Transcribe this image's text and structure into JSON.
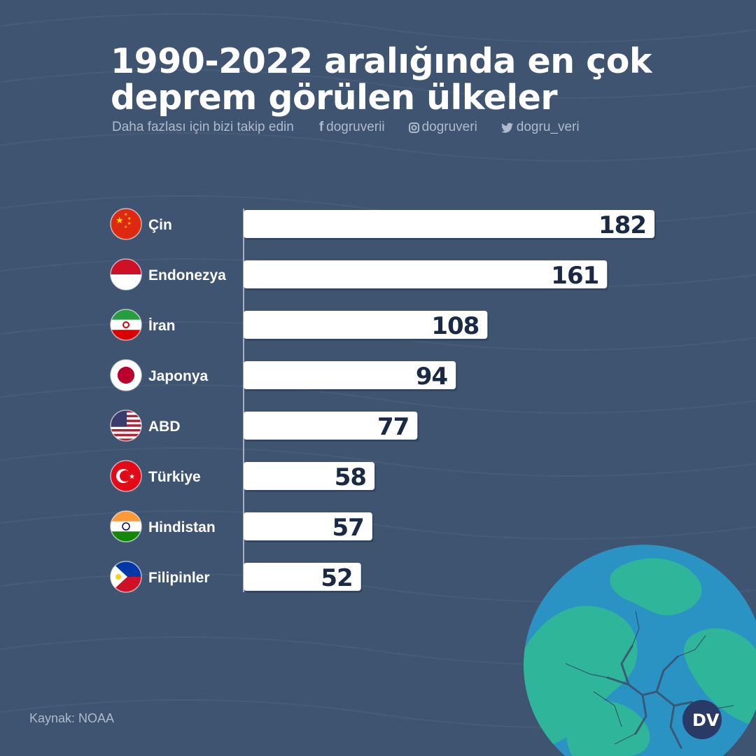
{
  "title_line1": "1990-2022 aralığında en çok",
  "title_line2": "deprem görülen ülkeler",
  "social": {
    "follow_text": "Daha fazlası için bizi takip edin",
    "facebook": "dogruverii",
    "instagram": "dogruveri",
    "twitter": "dogru_veri"
  },
  "source": "Kaynak: NOAA",
  "logo_text": "DV",
  "colors": {
    "background": "#3f5470",
    "bar": "#ffffff",
    "value_text": "#1b2a44",
    "label_text": "#ffffff",
    "globe_ocean": "#2a93c4",
    "globe_land": "#2fb59a"
  },
  "chart_data": {
    "type": "bar",
    "orientation": "horizontal",
    "categories": [
      "Çin",
      "Endonezya",
      "İran",
      "Japonya",
      "ABD",
      "Türkiye",
      "Hindistan",
      "Filipinler"
    ],
    "values": [
      182,
      161,
      108,
      94,
      77,
      58,
      57,
      52
    ],
    "flags": [
      "china-flag-icon",
      "indonesia-flag-icon",
      "iran-flag-icon",
      "japan-flag-icon",
      "usa-flag-icon",
      "turkey-flag-icon",
      "india-flag-icon",
      "philippines-flag-icon"
    ],
    "title": "1990-2022 aralığında en çok deprem görülen ülkeler",
    "xlabel": "",
    "ylabel": "",
    "xlim": [
      0,
      182
    ],
    "grid": false,
    "legend": "none"
  }
}
